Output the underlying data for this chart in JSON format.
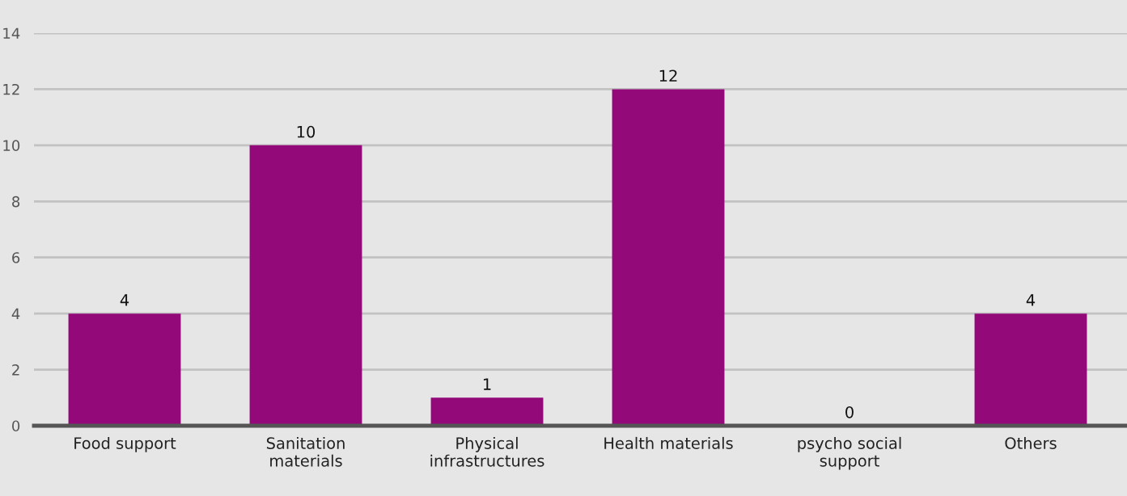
{
  "chart_data": {
    "type": "bar",
    "categories": [
      "Food support",
      "Sanitation\nmaterials",
      "Physical\ninfrastructures",
      "Health materials",
      "psycho social\nsupport",
      "Others"
    ],
    "values": [
      4,
      10,
      1,
      12,
      0,
      4
    ],
    "color": "#93097a",
    "ylim": [
      0,
      14
    ],
    "yticks": [
      0,
      2,
      4,
      6,
      8,
      10,
      12,
      14
    ],
    "grid": "y",
    "data_labels": true
  }
}
